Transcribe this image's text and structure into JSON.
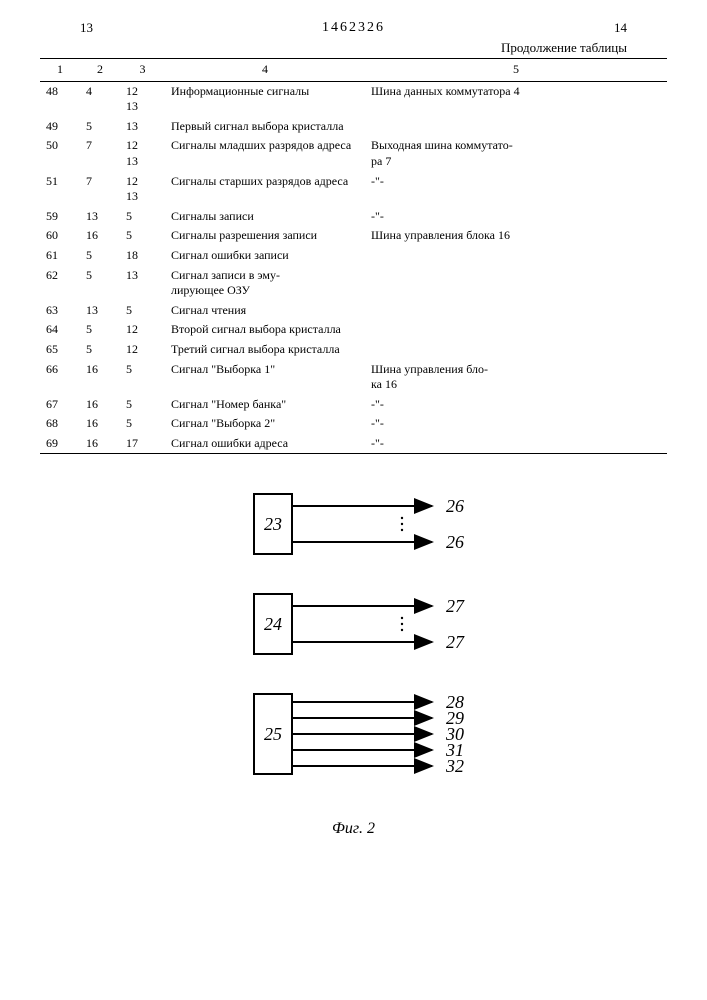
{
  "header": {
    "page_left": "13",
    "doc_number": "1462326",
    "page_right": "14",
    "continuation": "Продолжение таблицы"
  },
  "table": {
    "columns": [
      "1",
      "2",
      "3",
      "4",
      "5"
    ],
    "rows": [
      {
        "c1": "48",
        "c2": "4",
        "c3": "12\n13",
        "c4": "Информационные сигналы",
        "c5": "Шина данных коммутатора 4"
      },
      {
        "c1": "49",
        "c2": "5",
        "c3": "13",
        "c4": "Первый сигнал выбора кристалла",
        "c5": ""
      },
      {
        "c1": "50",
        "c2": "7",
        "c3": "12\n13",
        "c4": "Сигналы младших разрядов адреса",
        "c5": "Выходная шина коммутато-\nра 7"
      },
      {
        "c1": "51",
        "c2": "7",
        "c3": "12\n13",
        "c4": "Сигналы старших разрядов адреса",
        "c5": "-\"-"
      },
      {
        "c1": "59",
        "c2": "13",
        "c3": "5",
        "c4": "Сигналы записи",
        "c5": "-\"-"
      },
      {
        "c1": "60",
        "c2": "16",
        "c3": "5",
        "c4": "Сигналы разрешения записи",
        "c5": "Шина управления блока 16"
      },
      {
        "c1": "61",
        "c2": "5",
        "c3": "18",
        "c4": "Сигнал ошибки записи",
        "c5": ""
      },
      {
        "c1": "62",
        "c2": "5",
        "c3": "13",
        "c4": "Сигнал записи в эму-\nлирующее ОЗУ",
        "c5": ""
      },
      {
        "c1": "63",
        "c2": "13",
        "c3": "5",
        "c4": "Сигнал чтения",
        "c5": ""
      },
      {
        "c1": "64",
        "c2": "5",
        "c3": "12",
        "c4": "Второй сигнал выбора кристалла",
        "c5": ""
      },
      {
        "c1": "65",
        "c2": "5",
        "c3": "12",
        "c4": "Третий сигнал выбора кристалла",
        "c5": ""
      },
      {
        "c1": "66",
        "c2": "16",
        "c3": "5",
        "c4": "Сигнал \"Выборка 1\"",
        "c5": "Шина управления бло-\nка 16"
      },
      {
        "c1": "67",
        "c2": "16",
        "c3": "5",
        "c4": "Сигнал \"Номер банка\"",
        "c5": "-\"-"
      },
      {
        "c1": "68",
        "c2": "16",
        "c3": "5",
        "c4": "Сигнал \"Выборка 2\"",
        "c5": "-\"-"
      },
      {
        "c1": "69",
        "c2": "16",
        "c3": "17",
        "c4": "Сигнал ошибки адреса",
        "c5": "-\"-"
      }
    ]
  },
  "diagrams": {
    "blocks": [
      {
        "label": "23",
        "outputs": [
          "26",
          "26"
        ],
        "dots": true
      },
      {
        "label": "24",
        "outputs": [
          "27",
          "27"
        ],
        "dots": true
      },
      {
        "label": "25",
        "outputs": [
          "28",
          "29",
          "30",
          "31",
          "32"
        ],
        "dots": false
      }
    ],
    "figure_label": "Фиг. 2",
    "style": {
      "block_w": 38,
      "block_h_small": 60,
      "block_h_large": 80,
      "line_len": 140,
      "arrow_size": 8,
      "font_block": 18,
      "font_out": 18,
      "stroke": "#000000",
      "stroke_width": 2
    }
  }
}
